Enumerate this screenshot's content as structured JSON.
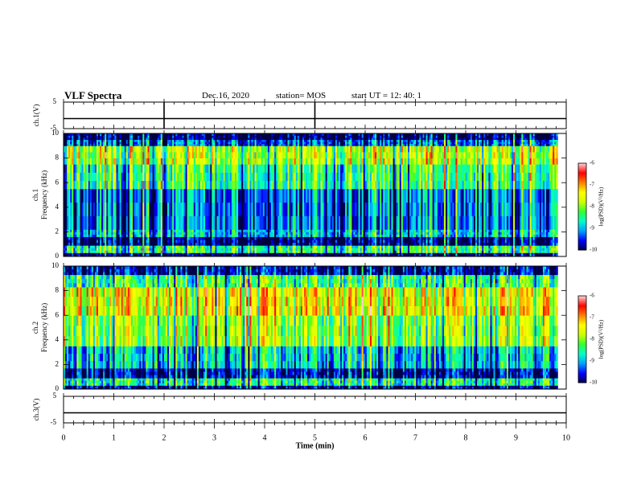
{
  "header": {
    "title": "VLF Spectra",
    "date": "Dec.16, 2020",
    "station": "station= MOS",
    "start_ut": "start  UT =   12: 40: 1"
  },
  "colors": {
    "spectrogram_scale": [
      "#000044",
      "#0000ff",
      "#00a0ff",
      "#00ffcc",
      "#33ff33",
      "#ccff00",
      "#ffff00",
      "#ff8000",
      "#ff0000",
      "#ffd0d0"
    ],
    "trace": "#000000",
    "frame": "#000000"
  },
  "chart_data": [
    {
      "type": "line",
      "panel": "ch1-voltage",
      "ylabel": "ch.1(V)",
      "ylim": [
        -5,
        5
      ],
      "yticks": [
        "5",
        "-5"
      ],
      "xlim": [
        0,
        10
      ],
      "series": [
        {
          "x": [
            0,
            10
          ],
          "values": [
            -1.2,
            -1.2
          ]
        }
      ]
    },
    {
      "type": "heatmap",
      "panel": "ch1-spectrogram",
      "ylabel": "ch.1  Frequency (kHz)",
      "ylim": [
        0,
        10
      ],
      "yticks": [
        "0",
        "2",
        "4",
        "6",
        "8",
        "10"
      ],
      "xlim": [
        0,
        9.83
      ],
      "band_levels": [
        {
          "fmin": 0,
          "fmax": 0.3,
          "level": -10
        },
        {
          "fmin": 0.3,
          "fmax": 0.9,
          "level": -8.3
        },
        {
          "fmin": 0.9,
          "fmax": 1.6,
          "level": -9.8
        },
        {
          "fmin": 1.6,
          "fmax": 2.2,
          "level": -8.8
        },
        {
          "fmin": 2.2,
          "fmax": 5.5,
          "level": -9.1
        },
        {
          "fmin": 5.5,
          "fmax": 7.5,
          "level": -8.3
        },
        {
          "fmin": 7.5,
          "fmax": 9.0,
          "level": -7.7
        },
        {
          "fmin": 9.0,
          "fmax": 9.5,
          "level": -9.2
        },
        {
          "fmin": 9.5,
          "fmax": 10,
          "level": -9.9
        }
      ],
      "colorbar": {
        "label": "log(PSD)(V²/Hz)",
        "ticks": [
          "-6",
          "-7",
          "-8",
          "-9",
          "-10"
        ],
        "range": [
          -10,
          -6
        ]
      }
    },
    {
      "type": "heatmap",
      "panel": "ch2-spectrogram",
      "ylabel": "ch.2  Frequency (kHz)",
      "ylim": [
        0,
        10
      ],
      "yticks": [
        "0",
        "2",
        "4",
        "6",
        "8",
        "10"
      ],
      "xlim": [
        0,
        9.83
      ],
      "band_levels": [
        {
          "fmin": 0,
          "fmax": 0.3,
          "level": -9.9
        },
        {
          "fmin": 0.3,
          "fmax": 0.9,
          "level": -8.6
        },
        {
          "fmin": 0.9,
          "fmax": 1.7,
          "level": -9.8
        },
        {
          "fmin": 1.7,
          "fmax": 3.5,
          "level": -8.9
        },
        {
          "fmin": 3.5,
          "fmax": 6.0,
          "level": -8.0
        },
        {
          "fmin": 6.0,
          "fmax": 8.3,
          "level": -7.5
        },
        {
          "fmin": 8.3,
          "fmax": 9.3,
          "level": -8.4
        },
        {
          "fmin": 9.3,
          "fmax": 10,
          "level": -9.8
        }
      ],
      "colorbar": {
        "label": "log(PSD)(V²/Hz)",
        "ticks": [
          "-6",
          "-7",
          "-8",
          "-9",
          "-10"
        ],
        "range": [
          -10,
          -6
        ]
      }
    },
    {
      "type": "line",
      "panel": "ch3-voltage",
      "ylabel": "ch.3(V)",
      "ylim": [
        -5,
        5
      ],
      "yticks": [
        "5",
        "-5"
      ],
      "xlim": [
        0,
        10
      ],
      "xlabel": "Time  (min)",
      "xticks": [
        "0",
        "1",
        "2",
        "3",
        "4",
        "5",
        "6",
        "7",
        "8",
        "9",
        "10"
      ],
      "series": [
        {
          "x": [
            0,
            10
          ],
          "values": [
            -1.2,
            -1.2
          ]
        }
      ]
    }
  ]
}
